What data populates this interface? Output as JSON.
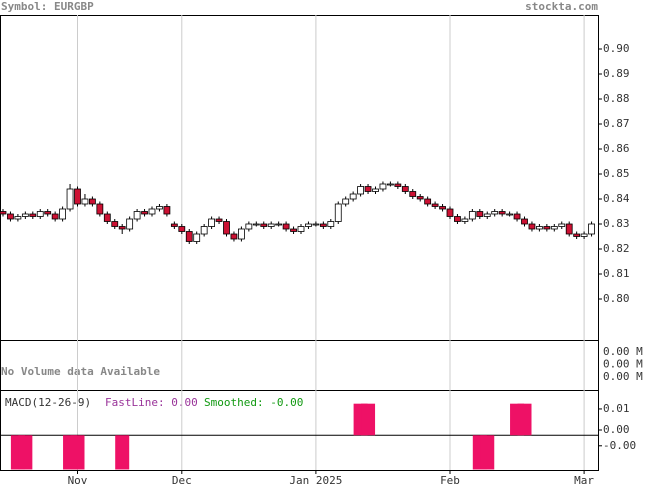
{
  "chart_data": {
    "type": "candlestick",
    "title": "Symbol: EURGBP",
    "source": "stockta.com",
    "up_color": "#ffffff",
    "down_color": "#cc1133",
    "open": [
      0.835,
      0.834,
      0.832,
      0.833,
      0.834,
      0.833,
      0.835,
      0.834,
      0.832,
      0.836,
      0.844,
      0.838,
      0.84,
      0.838,
      0.834,
      0.831,
      0.829,
      0.828,
      0.832,
      0.835,
      0.834,
      0.836,
      0.837,
      0.83,
      0.829,
      0.827,
      0.823,
      0.826,
      0.829,
      0.832,
      0.831,
      0.826,
      0.824,
      0.828,
      0.83,
      0.83,
      0.829,
      0.83,
      0.83,
      0.828,
      0.827,
      0.829,
      0.83,
      0.83,
      0.829,
      0.831,
      0.838,
      0.84,
      0.842,
      0.845,
      0.843,
      0.844,
      0.846,
      0.846,
      0.845,
      0.843,
      0.841,
      0.84,
      0.838,
      0.837,
      0.836,
      0.833,
      0.831,
      0.832,
      0.835,
      0.833,
      0.834,
      0.835,
      0.834,
      0.834,
      0.832,
      0.83,
      0.828,
      0.829,
      0.828,
      0.829,
      0.83,
      0.826,
      0.825,
      0.826
    ],
    "high": [
      0.836,
      0.835,
      0.834,
      0.835,
      0.835,
      0.836,
      0.836,
      0.835,
      0.837,
      0.846,
      0.845,
      0.842,
      0.841,
      0.839,
      0.835,
      0.832,
      0.83,
      0.833,
      0.836,
      0.836,
      0.837,
      0.838,
      0.838,
      0.831,
      0.83,
      0.828,
      0.827,
      0.83,
      0.833,
      0.833,
      0.832,
      0.827,
      0.829,
      0.831,
      0.831,
      0.831,
      0.831,
      0.831,
      0.831,
      0.829,
      0.83,
      0.831,
      0.831,
      0.831,
      0.832,
      0.839,
      0.841,
      0.843,
      0.846,
      0.846,
      0.845,
      0.847,
      0.847,
      0.847,
      0.846,
      0.844,
      0.842,
      0.841,
      0.839,
      0.838,
      0.837,
      0.834,
      0.833,
      0.836,
      0.836,
      0.835,
      0.836,
      0.836,
      0.835,
      0.835,
      0.833,
      0.831,
      0.83,
      0.83,
      0.83,
      0.831,
      0.831,
      0.827,
      0.827,
      0.831
    ],
    "low": [
      0.833,
      0.831,
      0.831,
      0.832,
      0.832,
      0.832,
      0.833,
      0.831,
      0.831,
      0.835,
      0.837,
      0.837,
      0.837,
      0.833,
      0.83,
      0.828,
      0.826,
      0.827,
      0.831,
      0.833,
      0.833,
      0.835,
      0.833,
      0.828,
      0.826,
      0.822,
      0.822,
      0.825,
      0.828,
      0.83,
      0.825,
      0.823,
      0.823,
      0.827,
      0.829,
      0.828,
      0.828,
      0.829,
      0.827,
      0.826,
      0.826,
      0.828,
      0.829,
      0.828,
      0.828,
      0.83,
      0.837,
      0.839,
      0.841,
      0.842,
      0.842,
      0.843,
      0.845,
      0.844,
      0.842,
      0.84,
      0.839,
      0.837,
      0.836,
      0.835,
      0.832,
      0.83,
      0.83,
      0.831,
      0.832,
      0.832,
      0.833,
      0.833,
      0.833,
      0.831,
      0.829,
      0.827,
      0.827,
      0.827,
      0.827,
      0.828,
      0.825,
      0.824,
      0.824,
      0.825
    ],
    "close": [
      0.834,
      0.832,
      0.833,
      0.834,
      0.833,
      0.835,
      0.834,
      0.832,
      0.836,
      0.844,
      0.838,
      0.84,
      0.838,
      0.834,
      0.831,
      0.829,
      0.828,
      0.832,
      0.835,
      0.834,
      0.836,
      0.837,
      0.834,
      0.829,
      0.827,
      0.823,
      0.826,
      0.829,
      0.832,
      0.831,
      0.826,
      0.824,
      0.828,
      0.83,
      0.83,
      0.829,
      0.83,
      0.83,
      0.828,
      0.827,
      0.829,
      0.83,
      0.83,
      0.829,
      0.831,
      0.838,
      0.84,
      0.842,
      0.845,
      0.843,
      0.844,
      0.846,
      0.846,
      0.845,
      0.843,
      0.841,
      0.84,
      0.838,
      0.837,
      0.836,
      0.833,
      0.831,
      0.832,
      0.835,
      0.833,
      0.834,
      0.835,
      0.834,
      0.834,
      0.832,
      0.83,
      0.828,
      0.829,
      0.828,
      0.829,
      0.83,
      0.826,
      0.825,
      0.826,
      0.83
    ],
    "ylim": [
      0.7836,
      0.9136
    ],
    "yticks": [
      {
        "value": 0.8,
        "label": "0.80"
      },
      0.81,
      0.82,
      0.83,
      0.84,
      0.85,
      0.86,
      0.87,
      0.88,
      0.89,
      {
        "value": 0.9,
        "label": "0.90"
      }
    ],
    "xticks": [
      {
        "value": 10,
        "label": "Nov"
      },
      {
        "value": 24,
        "label": "Dec"
      },
      {
        "value": 42,
        "label": "Jan 2025"
      },
      {
        "value": 60,
        "label": "Feb"
      },
      {
        "value": 78,
        "label": "Mar"
      }
    ],
    "volume": {
      "note": "No Volume data Available",
      "tick_labels": [
        "0.00 M",
        "0.00 M",
        "0.00 M"
      ]
    },
    "macd": {
      "label": "MACD(12-26-9)",
      "fast_label": "FastLine: 0.00",
      "smoothed_label": "Smoothed: -0.00",
      "color": "#ee1166",
      "ylim": [
        -0.0132,
        0.0172
      ],
      "yticks": [
        {
          "value": -0.004,
          "label": "-0.00"
        },
        {
          "value": 0.002,
          "label": "0.00"
        },
        0.01
      ],
      "histogram": [
        null,
        null,
        -0.013,
        -0.013,
        null,
        null,
        null,
        null,
        null,
        -0.013,
        -0.013,
        null,
        null,
        null,
        null,
        null,
        -0.013,
        null,
        null,
        null,
        null,
        null,
        null,
        null,
        null,
        null,
        null,
        null,
        null,
        null,
        null,
        null,
        null,
        null,
        null,
        null,
        null,
        null,
        null,
        null,
        null,
        null,
        null,
        null,
        null,
        null,
        null,
        null,
        0.012,
        0.012,
        null,
        null,
        null,
        null,
        null,
        null,
        null,
        null,
        null,
        null,
        null,
        null,
        null,
        null,
        -0.013,
        -0.013,
        null,
        null,
        null,
        0.012,
        0.012,
        null,
        null,
        null,
        null,
        null,
        null,
        null,
        null,
        null
      ]
    }
  }
}
